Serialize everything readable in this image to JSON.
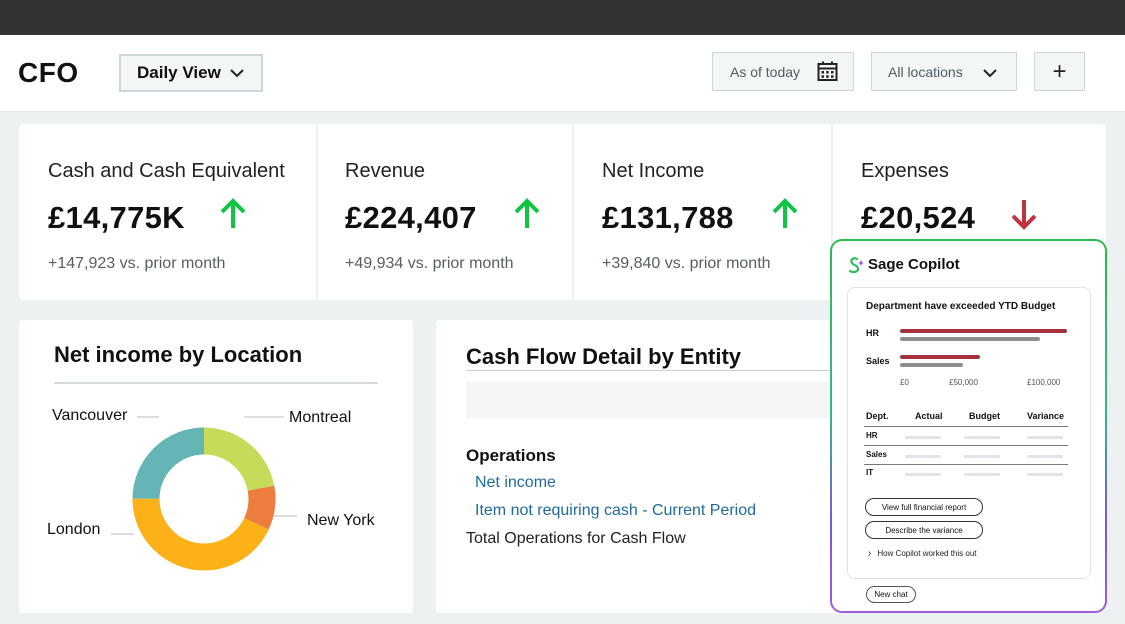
{
  "header": {
    "title": "CFO",
    "view_select": "Daily View",
    "date_filter": "As of today",
    "location_filter": "All locations",
    "add_label": "+"
  },
  "kpis": [
    {
      "title": "Cash and Cash Equivalent",
      "value": "£14,775K",
      "trend": "up",
      "delta": "+147,923 vs. prior month"
    },
    {
      "title": "Revenue",
      "value": "£224,407",
      "trend": "up",
      "delta": "+49,934 vs. prior month"
    },
    {
      "title": "Net Income",
      "value": "£131,788",
      "trend": "up",
      "delta": "+39,840 vs. prior month"
    },
    {
      "title": "Expenses",
      "value": "£20,524",
      "trend": "down",
      "delta": ""
    }
  ],
  "colors": {
    "up": "#10c443",
    "down": "#c0343f",
    "link": "#1f6b9a"
  },
  "net_income_card": {
    "title": "Net income by Location",
    "chart_data": {
      "type": "pie",
      "donut": true,
      "title": "Net income by Location",
      "categories": [
        "Montreal",
        "New York",
        "London",
        "Vancouver"
      ],
      "values": [
        22,
        10,
        43,
        25
      ],
      "colors": [
        "#c8da5a",
        "#ed7d3f",
        "#fbb117",
        "#64b5b3"
      ]
    }
  },
  "cash_flow_card": {
    "title": "Cash Flow Detail by Entity",
    "section": "Operations",
    "links": [
      "Net income",
      "Item not requiring cash - Current Period"
    ],
    "total": "Total Operations for Cash Flow"
  },
  "copilot": {
    "title": "Sage Copilot",
    "card_heading": "Department have exceeded YTD Budget",
    "chart_data": {
      "type": "bar",
      "orientation": "horizontal",
      "categories": [
        "HR",
        "Sales"
      ],
      "series": [
        {
          "values": [
            100000,
            48000
          ]
        },
        {
          "values": [
            84000,
            38000
          ]
        }
      ],
      "xlim": [
        0,
        100000
      ],
      "tick_labels": [
        "£0",
        "£50,000",
        "£100,000"
      ],
      "colors": [
        "#a8303d",
        "#8e8e8e"
      ]
    },
    "table": {
      "headers": [
        "Dept.",
        "Actual",
        "Budget",
        "Variance"
      ],
      "rows": [
        "HR",
        "Sales",
        "IT"
      ]
    },
    "actions": [
      "View full financial report",
      "Describe the variance"
    ],
    "how_label": "How Copilot worked this out",
    "new_chat": "New chat"
  }
}
